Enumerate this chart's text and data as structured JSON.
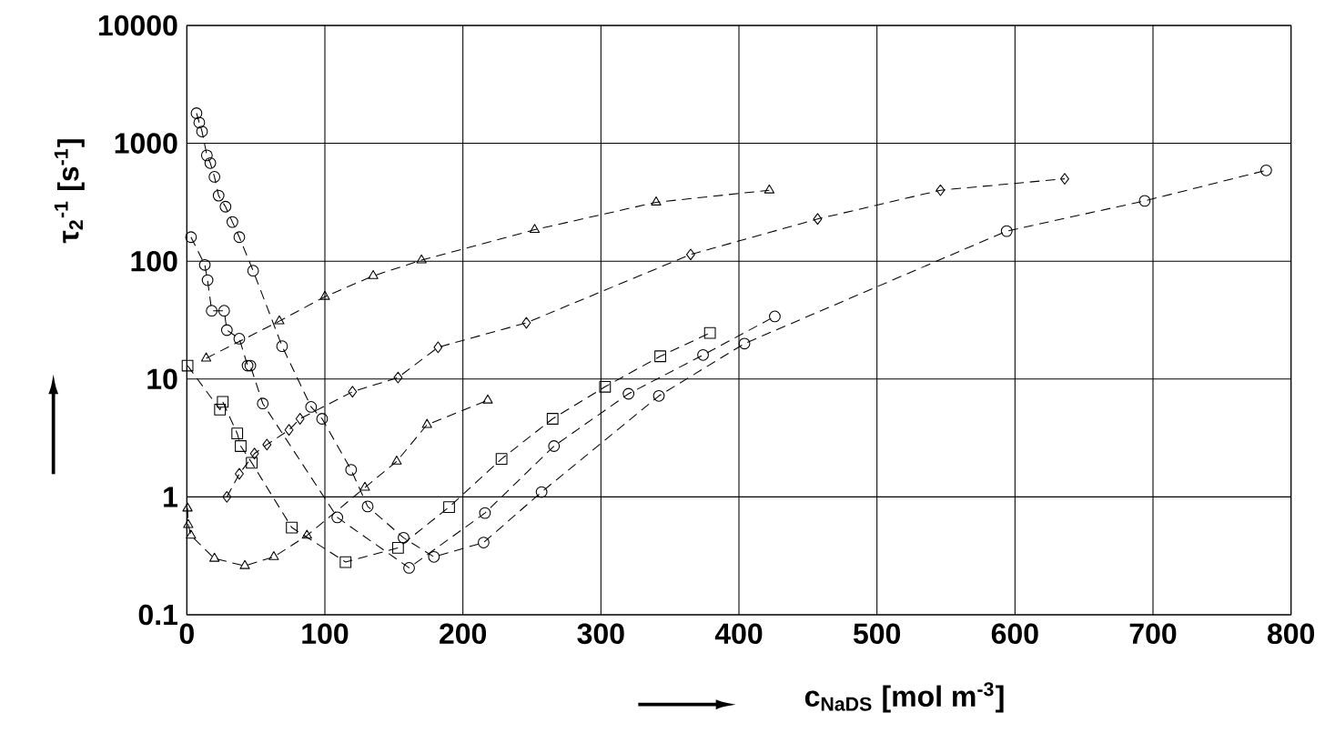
{
  "chart_data": {
    "type": "line",
    "xlabel": "c$_{NaDS}$ [mol m$^{-3}$]",
    "ylabel": "τ$_{2}$$^{-1}$ [s$^{-1}$]",
    "xlim": [
      0,
      800
    ],
    "ylim": [
      0.1,
      10000
    ],
    "xticks": [
      0,
      100,
      200,
      300,
      400,
      500,
      600,
      700,
      800
    ],
    "yticks": [
      0.1,
      1,
      10,
      100,
      1000,
      10000
    ],
    "log": "y",
    "grid": true,
    "line_style": "dashed",
    "series": [
      {
        "color": "#000000",
        "marker": "circle",
        "x": [
          7,
          9,
          11,
          14.5,
          17,
          20,
          23,
          28,
          33,
          38,
          48,
          69,
          90,
          98,
          119,
          131,
          157,
          179,
          215,
          257,
          342,
          404,
          594,
          694,
          782
        ],
        "values": [
          1800,
          1500,
          1260,
          790,
          680,
          520,
          360,
          290,
          215,
          160,
          83,
          19,
          5.8,
          4.6,
          1.7,
          0.83,
          0.45,
          0.31,
          0.41,
          1.1,
          7.2,
          20,
          180,
          325,
          590
        ]
      },
      {
        "color": "#000000",
        "marker": "circle",
        "x": [
          3,
          13,
          15,
          18,
          27,
          29,
          38,
          44,
          46,
          55,
          109,
          161,
          216,
          266,
          320,
          374,
          426
        ],
        "values": [
          160,
          93,
          69,
          38,
          38,
          26,
          22,
          13,
          13,
          6.2,
          0.67,
          0.25,
          0.73,
          2.7,
          7.5,
          16,
          34
        ]
      },
      {
        "color": "#000000",
        "marker": "square",
        "x": [
          0.5,
          24,
          26,
          36.5,
          39,
          47,
          76,
          115,
          153,
          190,
          228,
          265,
          303,
          343,
          379
        ],
        "values": [
          13,
          5.5,
          6.4,
          3.45,
          2.7,
          1.95,
          0.55,
          0.28,
          0.37,
          0.82,
          2.1,
          4.6,
          8.6,
          15.6,
          24.6
        ]
      },
      {
        "color": "#000000",
        "marker": "triangle",
        "x": [
          0.5,
          1,
          3,
          20,
          42,
          63,
          87,
          129,
          152,
          174,
          218
        ],
        "values": [
          0.8,
          0.58,
          0.47,
          0.3,
          0.26,
          0.31,
          0.47,
          1.2,
          2.0,
          4.1,
          6.6
        ]
      },
      {
        "color": "#000000",
        "marker": "triangle",
        "x": [
          14,
          67,
          100,
          135,
          170,
          252,
          340,
          422
        ],
        "values": [
          15,
          31,
          50,
          75,
          102,
          185,
          316,
          400
        ]
      },
      {
        "color": "#000000",
        "marker": "diamond",
        "x": [
          29,
          38,
          49,
          58,
          74,
          82,
          120,
          153,
          182,
          246,
          365,
          457,
          546,
          636
        ],
        "values": [
          1.0,
          1.57,
          2.33,
          2.78,
          3.7,
          4.6,
          7.8,
          10.3,
          18.6,
          30,
          114,
          228,
          400,
          500
        ]
      }
    ]
  }
}
